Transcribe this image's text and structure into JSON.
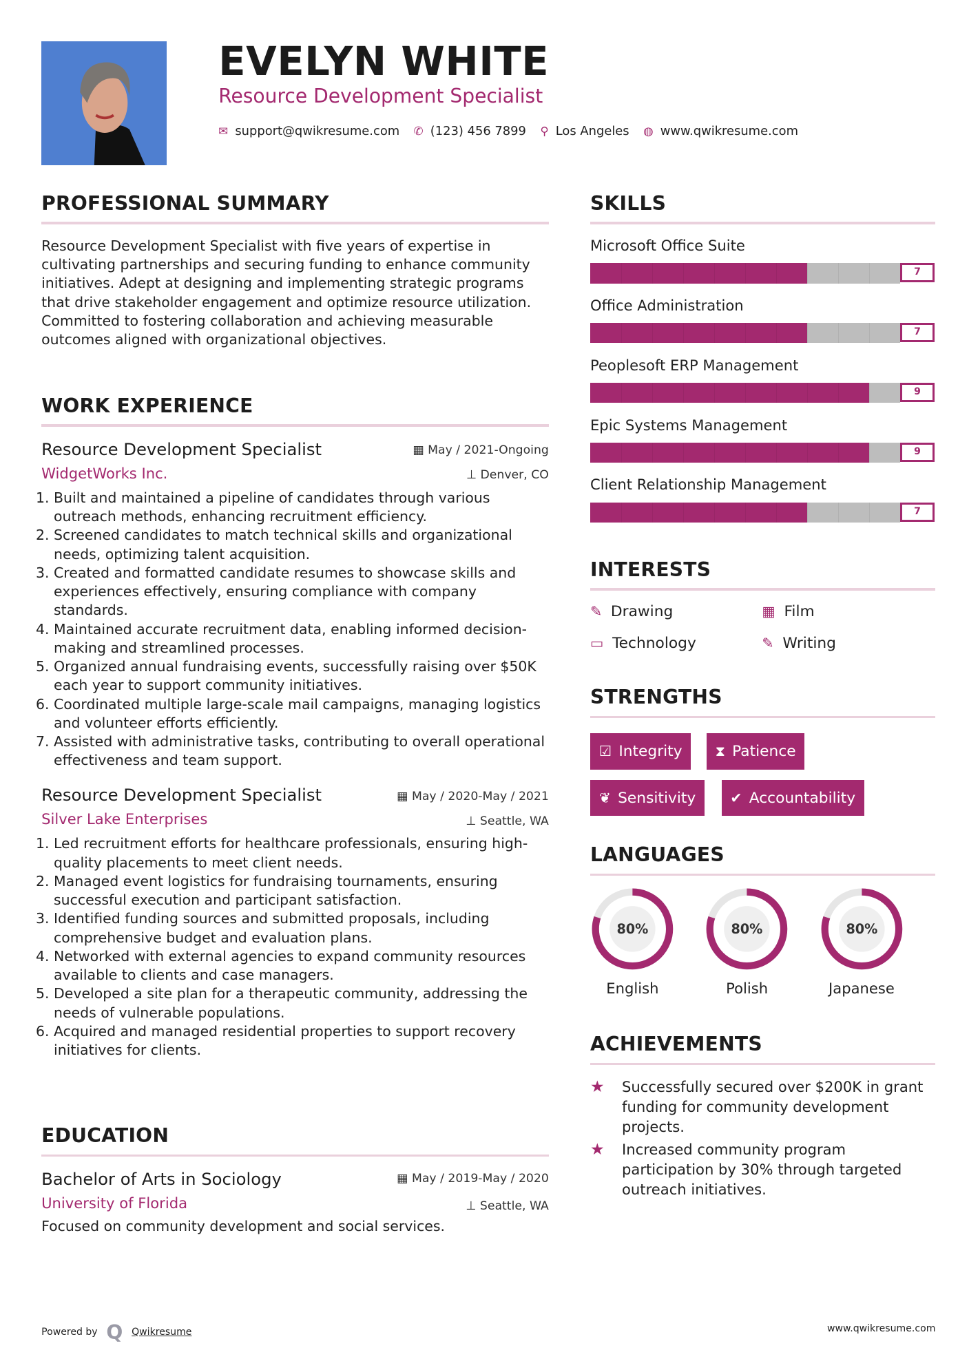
{
  "header": {
    "name": "EVELYN WHITE",
    "title": "Resource Development Specialist",
    "contacts": [
      {
        "icon": "envelope-icon",
        "glyph": "✉",
        "text": "support@qwikresume.com"
      },
      {
        "icon": "phone-icon",
        "glyph": "✆",
        "text": "(123) 456 7899"
      },
      {
        "icon": "map-pin-icon",
        "glyph": "⚲",
        "text": "Los Angeles"
      },
      {
        "icon": "globe-icon",
        "glyph": "◍",
        "text": "www.qwikresume.com"
      }
    ]
  },
  "colors": {
    "accent": "#a3296f",
    "rule": "#ead0dc",
    "track": "#bdbdbd",
    "photo_bg": "#4f7fd0"
  },
  "summary": {
    "heading": "PROFESSIONAL SUMMARY",
    "text": "Resource Development Specialist with five years of expertise in cultivating partnerships and securing funding to enhance community initiatives. Adept at designing and implementing strategic programs that drive stakeholder engagement and optimize resource utilization. Committed to fostering collaboration and achieving measurable outcomes aligned with organizational objectives."
  },
  "experience": {
    "heading": "WORK EXPERIENCE",
    "jobs": [
      {
        "title": "Resource Development Specialist",
        "company": "WidgetWorks Inc.",
        "date": "May / 2021-Ongoing",
        "location": "Denver, CO",
        "bullets": [
          "Built and maintained a pipeline of candidates through various outreach methods, enhancing recruitment efficiency.",
          "Screened candidates to match technical skills and organizational needs, optimizing talent acquisition.",
          "Created and formatted candidate resumes to showcase skills and experiences effectively, ensuring compliance with company standards.",
          "Maintained accurate recruitment data, enabling informed decision-making and streamlined processes.",
          "Organized annual fundraising events, successfully raising over $50K each year to support community initiatives.",
          "Coordinated multiple large-scale mail campaigns, managing logistics and volunteer efforts efficiently.",
          "Assisted with administrative tasks, contributing to overall operational effectiveness and team support."
        ]
      },
      {
        "title": "Resource Development Specialist",
        "company": "Silver Lake Enterprises",
        "date": "May / 2020-May / 2021",
        "location": "Seattle, WA",
        "bullets": [
          "Led recruitment efforts for healthcare professionals, ensuring high-quality placements to meet client needs.",
          "Managed event logistics for fundraising tournaments, ensuring successful execution and participant satisfaction.",
          "Identified funding sources and submitted proposals, including comprehensive budget and evaluation plans.",
          "Networked with external agencies to expand community resources available to clients and case managers.",
          "Developed a site plan for a therapeutic community, addressing the needs of vulnerable populations.",
          "Acquired and managed residential properties to support recovery initiatives for clients."
        ]
      }
    ]
  },
  "education": {
    "heading": "EDUCATION",
    "degree": "Bachelor of Arts in Sociology",
    "school": "University of Florida",
    "date": "May / 2019-May / 2020",
    "location": "Seattle, WA",
    "description": "Focused on community development and social services."
  },
  "skills": {
    "heading": "SKILLS",
    "max": 10,
    "items": [
      {
        "name": "Microsoft Office Suite",
        "level": 7
      },
      {
        "name": "Office Administration",
        "level": 7
      },
      {
        "name": "Peoplesoft ERP Management",
        "level": 9
      },
      {
        "name": "Epic Systems Management",
        "level": 9
      },
      {
        "name": "Client Relationship Management",
        "level": 7
      }
    ]
  },
  "interests": {
    "heading": "INTERESTS",
    "items": [
      {
        "icon": "pencil-icon",
        "glyph": "✎",
        "label": "Drawing"
      },
      {
        "icon": "film-icon",
        "glyph": "▦",
        "label": "Film"
      },
      {
        "icon": "laptop-icon",
        "glyph": "▭",
        "label": "Technology"
      },
      {
        "icon": "pencil-icon",
        "glyph": "✎",
        "label": "Writing"
      }
    ]
  },
  "strengths": {
    "heading": "STRENGTHS",
    "items": [
      {
        "icon": "checkbox-icon",
        "glyph": "☑",
        "label": "Integrity"
      },
      {
        "icon": "hourglass-icon",
        "glyph": "⧗",
        "label": "Patience"
      },
      {
        "icon": "leaf-icon",
        "glyph": "❦",
        "label": "Sensitivity"
      },
      {
        "icon": "check-circle-icon",
        "glyph": "✔",
        "label": "Accountability"
      }
    ]
  },
  "languages": {
    "heading": "LANGUAGES",
    "items": [
      {
        "name": "English",
        "percent": 80,
        "label": "80%"
      },
      {
        "name": "Polish",
        "percent": 80,
        "label": "80%"
      },
      {
        "name": "Japanese",
        "percent": 80,
        "label": "80%"
      }
    ]
  },
  "achievements": {
    "heading": "ACHIEVEMENTS",
    "items": [
      "Successfully secured over $200K in grant funding for community development projects.",
      "Increased community program participation by 30% through targeted outreach initiatives."
    ]
  },
  "footer": {
    "powered_by": "Powered by",
    "brand": "Qwikresume",
    "url": "www.qwikresume.com"
  }
}
